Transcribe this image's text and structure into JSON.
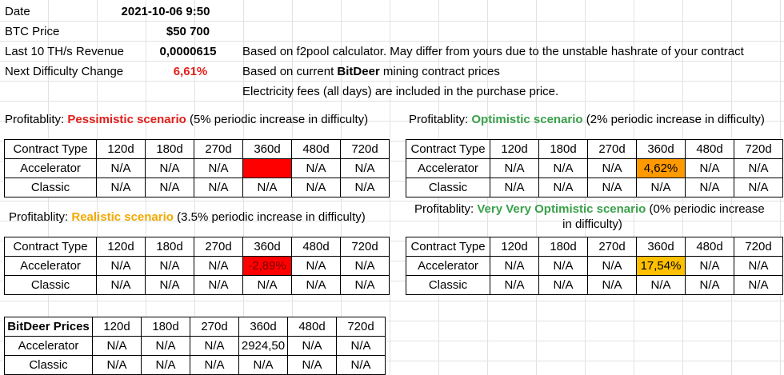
{
  "info": {
    "date": {
      "label": "Date",
      "value": "2021-10-06 9:50"
    },
    "btc_price": {
      "label": "BTC Price",
      "value": "$50 700"
    },
    "revenue": {
      "label": "Last 10 TH/s Revenue",
      "value": "0,0000615"
    },
    "difficulty": {
      "label": "Next Difficulty Change",
      "value": "6,61%"
    }
  },
  "notes": {
    "n1": "Based on f2pool calculator. May differ from yours due to the unstable hashrate of your contract",
    "n2_pre": "Based on current ",
    "n2_bold": "BitDeer",
    "n2_post": " mining contract prices",
    "n3": "Electricity fees (all days) are included in the purchase price."
  },
  "columns": [
    "Contract Type",
    "120d",
    "180d",
    "270d",
    "360d",
    "480d",
    "720d"
  ],
  "prices_header": "BitDeer Prices",
  "row_labels": {
    "accelerator": "Accelerator",
    "classic": "Classic"
  },
  "scenarios": {
    "pessimistic": {
      "prefix": "Profitablity: ",
      "name": "Pessimistic scenario",
      "suffix": " (5% periodic increase in difficulty)",
      "accelerator": [
        "N/A",
        "N/A",
        "N/A",
        "",
        "N/A",
        "N/A"
      ],
      "classic": [
        "N/A",
        "N/A",
        "N/A",
        "N/A",
        "N/A",
        "N/A"
      ]
    },
    "optimistic": {
      "prefix": "Profitablity: ",
      "name": "Optimistic scenario",
      "suffix": " (2% periodic increase in difficulty)",
      "accelerator": [
        "N/A",
        "N/A",
        "N/A",
        "4,62%",
        "N/A",
        "N/A"
      ],
      "classic": [
        "N/A",
        "N/A",
        "N/A",
        "N/A",
        "N/A",
        "N/A"
      ]
    },
    "realistic": {
      "prefix": "Profitablity: ",
      "name": "Realistic scenario",
      "suffix": " (3.5% periodic increase in difficulty)",
      "accelerator": [
        "N/A",
        "N/A",
        "N/A",
        "-2,89%",
        "N/A",
        "N/A"
      ],
      "classic": [
        "N/A",
        "N/A",
        "N/A",
        "N/A",
        "N/A",
        "N/A"
      ]
    },
    "very_optimistic": {
      "prefix": "Profitablity: ",
      "name": "Very Very Optimistic scenario",
      "suffix": " (0% periodic increase",
      "suffix_line2": "in difficulty)",
      "accelerator": [
        "N/A",
        "N/A",
        "N/A",
        "17,54%",
        "N/A",
        "N/A"
      ],
      "classic": [
        "N/A",
        "N/A",
        "N/A",
        "N/A",
        "N/A",
        "N/A"
      ]
    }
  },
  "prices": {
    "accelerator": [
      "N/A",
      "N/A",
      "N/A",
      "2924,50",
      "N/A",
      "N/A"
    ],
    "classic": [
      "N/A",
      "N/A",
      "N/A",
      "N/A",
      "N/A",
      "N/A"
    ]
  },
  "colors": {
    "negative": "#ff0000",
    "low_positive": "#ff9900",
    "high_positive": "#ffc000"
  }
}
